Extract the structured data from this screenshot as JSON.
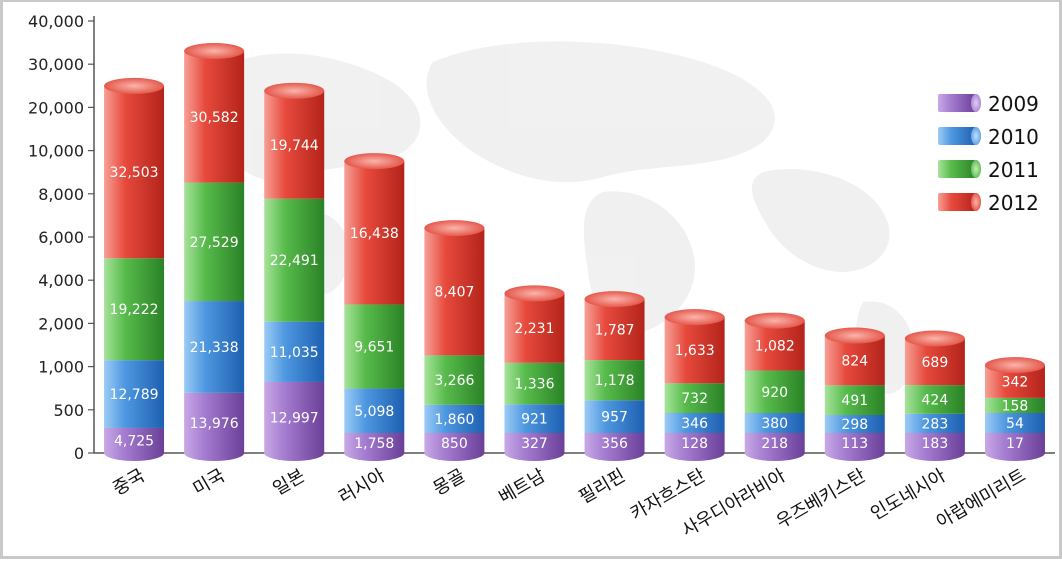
{
  "chart_data": {
    "type": "bar",
    "stacked": true,
    "categories": [
      "중국",
      "미국",
      "일본",
      "러시아",
      "몽골",
      "베트남",
      "필리핀",
      "카자흐스탄",
      "사우디아라비아",
      "우즈베키스탄",
      "인도네시아",
      "아랍에미리트"
    ],
    "y_ticks": [
      "0",
      "500",
      "1,000",
      "2,000",
      "4,000",
      "6,000",
      "8,000",
      "10,000",
      "20,000",
      "30,000",
      "40,000"
    ],
    "series": [
      {
        "name": "2009",
        "values": [
          4725,
          13976,
          12997,
          1758,
          850,
          327,
          356,
          128,
          218,
          113,
          183,
          17
        ],
        "labels": [
          "4,725",
          "13,976",
          "12,997",
          "1,758",
          "850",
          "327",
          "356",
          "128",
          "218",
          "113",
          "183",
          "17"
        ]
      },
      {
        "name": "2010",
        "values": [
          12789,
          21338,
          11035,
          5098,
          1860,
          921,
          957,
          346,
          380,
          298,
          283,
          54
        ],
        "labels": [
          "12,789",
          "21,338",
          "11,035",
          "5,098",
          "1,860",
          "921",
          "957",
          "346",
          "380",
          "298",
          "283",
          "54"
        ]
      },
      {
        "name": "2011",
        "values": [
          19222,
          27529,
          22491,
          9651,
          3266,
          1336,
          1178,
          732,
          920,
          491,
          424,
          158
        ],
        "labels": [
          "19,222",
          "27,529",
          "22,491",
          "9,651",
          "3,266",
          "1,336",
          "1,178",
          "732",
          "920",
          "491",
          "424",
          "158"
        ]
      },
      {
        "name": "2012",
        "values": [
          32503,
          30582,
          19744,
          16438,
          8407,
          2231,
          1787,
          1633,
          1082,
          824,
          689,
          342
        ],
        "labels": [
          "32,503",
          "30,582",
          "19,744",
          "16,438",
          "8,407",
          "2,231",
          "1,787",
          "1,633",
          "1,082",
          "824",
          "689",
          "342"
        ]
      }
    ],
    "legend_position": "right",
    "grid": false,
    "colors": {
      "2009": "#9b6fc0",
      "2010": "#4f93d9",
      "2011": "#4fb447",
      "2012": "#e8453c"
    }
  }
}
